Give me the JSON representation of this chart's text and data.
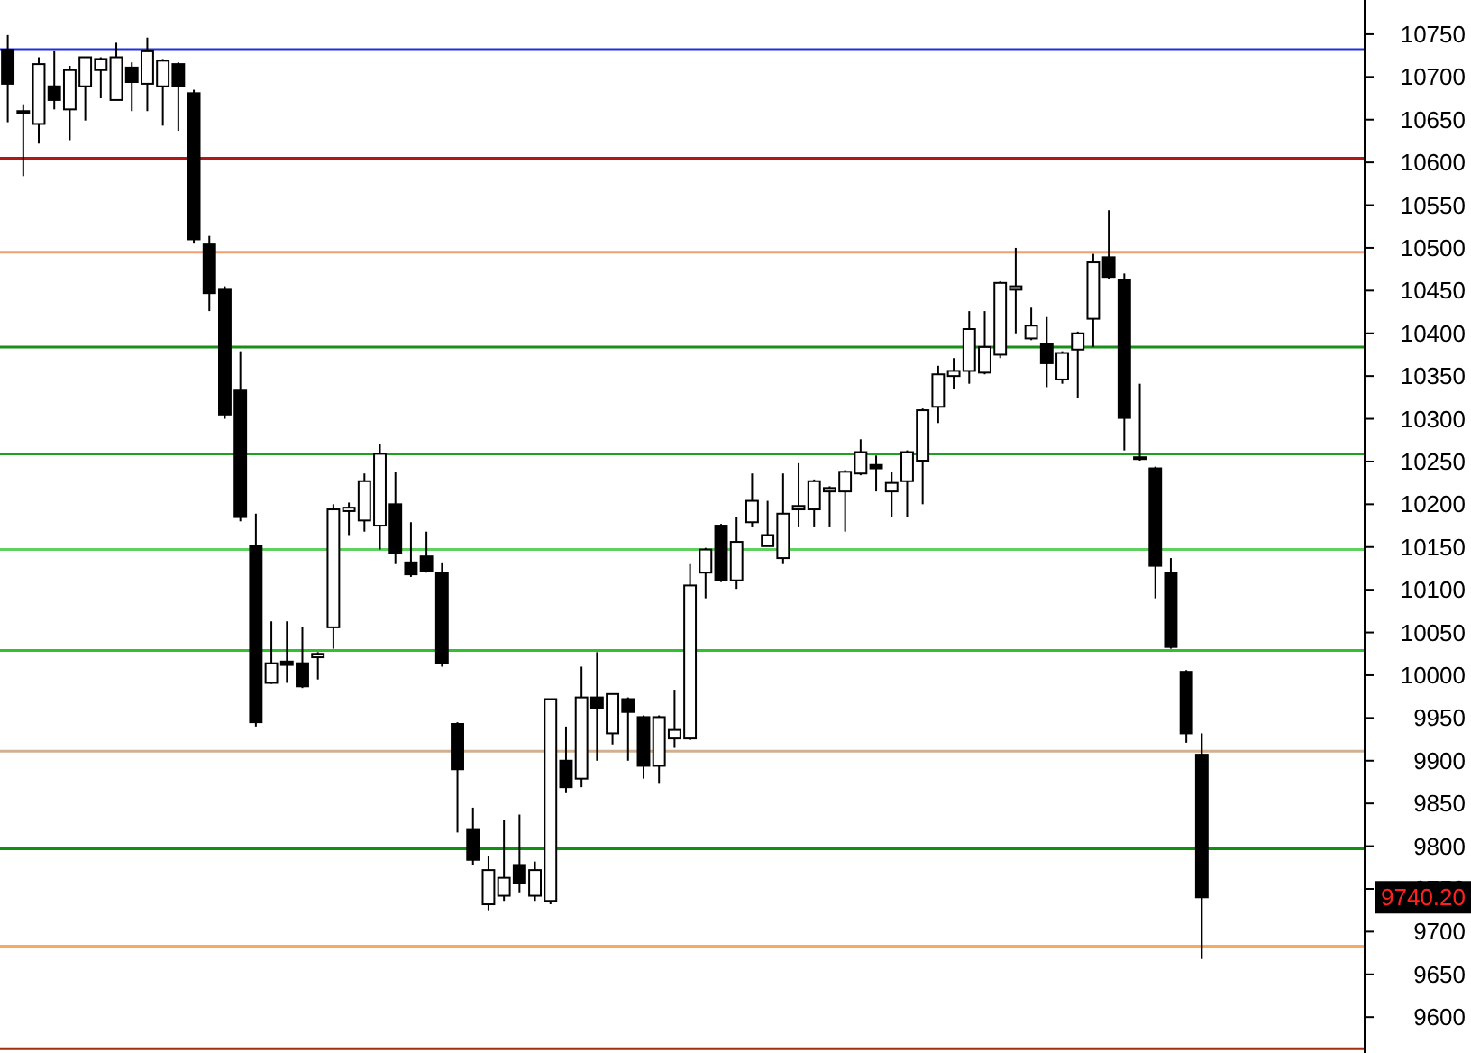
{
  "chart_data": {
    "type": "candlestick",
    "categories": [
      null,
      null,
      null,
      null,
      null,
      null,
      null,
      null,
      null,
      null,
      null,
      null,
      null,
      null,
      null,
      null,
      null,
      null,
      null,
      null,
      null,
      null,
      null,
      null,
      null,
      null,
      null,
      null,
      null,
      null,
      null,
      null,
      null,
      null,
      null,
      null,
      null,
      null,
      null,
      null,
      null,
      null,
      null,
      null,
      null,
      null,
      null,
      null,
      null,
      null,
      null,
      null,
      null,
      null,
      null,
      null,
      null,
      null,
      null,
      null,
      null,
      null,
      null,
      null,
      null,
      null,
      null,
      null,
      null,
      null,
      null,
      null,
      null,
      null,
      null,
      null,
      null,
      null,
      null,
      null,
      null,
      null,
      null,
      null,
      null,
      null,
      null,
      null
    ],
    "ohlc": [
      [
        10732,
        10749,
        10647,
        10692
      ],
      [
        10660,
        10668,
        10584,
        10658
      ],
      [
        10645,
        10723,
        10622,
        10715
      ],
      [
        10689,
        10730,
        10662,
        10673
      ],
      [
        10662,
        10713,
        10626,
        10708
      ],
      [
        10689,
        10723,
        10649,
        10723
      ],
      [
        10708,
        10723,
        10675,
        10721
      ],
      [
        10673,
        10740,
        10673,
        10723
      ],
      [
        10711,
        10717,
        10660,
        10694
      ],
      [
        10692,
        10746,
        10660,
        10730
      ],
      [
        10689,
        10721,
        10643,
        10719
      ],
      [
        10715,
        10717,
        10637,
        10689
      ],
      [
        10681,
        10685,
        10505,
        10510
      ],
      [
        10504,
        10514,
        10426,
        10447
      ],
      [
        10451,
        10455,
        10300,
        10305
      ],
      [
        10333,
        10379,
        10180,
        10185
      ],
      [
        10151,
        10189,
        9940,
        9945
      ],
      [
        9991,
        10063,
        9990,
        10014
      ],
      [
        10016,
        10063,
        9991,
        10012
      ],
      [
        10014,
        10056,
        9985,
        9987
      ],
      [
        10021,
        10027,
        9995,
        10025
      ],
      [
        10056,
        10200,
        10031,
        10194
      ],
      [
        10192,
        10202,
        10164,
        10196
      ],
      [
        10181,
        10236,
        10168,
        10227
      ],
      [
        10175,
        10270,
        10147,
        10259
      ],
      [
        10200,
        10238,
        10130,
        10143
      ],
      [
        10132,
        10179,
        10115,
        10118
      ],
      [
        10139,
        10168,
        10120,
        10122
      ],
      [
        10120,
        10132,
        10010,
        10014
      ],
      [
        9943,
        9945,
        9816,
        9890
      ],
      [
        9820,
        9845,
        9778,
        9784
      ],
      [
        9732,
        9788,
        9725,
        9772
      ],
      [
        9742,
        9831,
        9736,
        9763
      ],
      [
        9778,
        9837,
        9746,
        9757
      ],
      [
        9742,
        9782,
        9736,
        9772
      ],
      [
        9736,
        9972,
        9732,
        9972
      ],
      [
        9900,
        9940,
        9862,
        9869
      ],
      [
        9879,
        10010,
        9869,
        9974
      ],
      [
        9974,
        10027,
        9900,
        9962
      ],
      [
        9932,
        9978,
        9919,
        9978
      ],
      [
        9972,
        9974,
        9900,
        9957
      ],
      [
        9951,
        9953,
        9879,
        9894
      ],
      [
        9894,
        9953,
        9873,
        9951
      ],
      [
        9926,
        9983,
        9915,
        9936
      ],
      [
        9926,
        10130,
        9924,
        10105
      ],
      [
        10120,
        10149,
        10090,
        10147
      ],
      [
        10175,
        10177,
        10109,
        10111
      ],
      [
        10111,
        10185,
        10101,
        10156
      ],
      [
        10179,
        10236,
        10173,
        10204
      ],
      [
        10151,
        10204,
        10151,
        10164
      ],
      [
        10137,
        10236,
        10130,
        10189
      ],
      [
        10194,
        10248,
        10173,
        10198
      ],
      [
        10194,
        10229,
        10173,
        10227
      ],
      [
        10215,
        10221,
        10173,
        10219
      ],
      [
        10215,
        10240,
        10168,
        10238
      ],
      [
        10236,
        10276,
        10234,
        10261
      ],
      [
        10246,
        10257,
        10215,
        10242
      ],
      [
        10215,
        10238,
        10185,
        10225
      ],
      [
        10227,
        10263,
        10185,
        10261
      ],
      [
        10251,
        10312,
        10200,
        10310
      ],
      [
        10314,
        10362,
        10295,
        10352
      ],
      [
        10350,
        10371,
        10335,
        10356
      ],
      [
        10356,
        10426,
        10341,
        10405
      ],
      [
        10354,
        10426,
        10352,
        10384
      ],
      [
        10375,
        10461,
        10371,
        10459
      ],
      [
        10451,
        10500,
        10400,
        10455
      ],
      [
        10394,
        10430,
        10392,
        10409
      ],
      [
        10388,
        10419,
        10337,
        10365
      ],
      [
        10346,
        10379,
        10341,
        10377
      ],
      [
        10381,
        10402,
        10324,
        10400
      ],
      [
        10417,
        10493,
        10384,
        10483
      ],
      [
        10489,
        10544,
        10464,
        10466
      ],
      [
        10462,
        10470,
        10263,
        10301
      ],
      [
        10255,
        10341,
        10251,
        10253
      ],
      [
        10242,
        10244,
        10090,
        10128
      ],
      [
        10120,
        10137,
        10031,
        10033
      ],
      [
        10004,
        10006,
        9921,
        9932
      ],
      [
        9907,
        9932,
        9668,
        9740.2
      ],
      null,
      null,
      null,
      null,
      null,
      null,
      null,
      null,
      null,
      null
    ],
    "ylim": [
      9558,
      10790
    ],
    "yticks": [
      9600,
      9650,
      9700,
      9750,
      9800,
      9850,
      9900,
      9950,
      10000,
      10050,
      10100,
      10150,
      10200,
      10250,
      10300,
      10350,
      10400,
      10450,
      10500,
      10550,
      10600,
      10650,
      10700,
      10750
    ],
    "tick_labels": "y",
    "ref_lines": [
      {
        "axis": "y",
        "value": 10732,
        "color": "#2030e0"
      },
      {
        "axis": "y",
        "value": 10605,
        "color": "#b01818"
      },
      {
        "axis": "y",
        "value": 10495,
        "color": "#f0a070"
      },
      {
        "axis": "y",
        "value": 10384,
        "color": "#189018"
      },
      {
        "axis": "y",
        "value": 10259,
        "color": "#20a020"
      },
      {
        "axis": "y",
        "value": 10147,
        "color": "#60d060"
      },
      {
        "axis": "y",
        "value": 10029,
        "color": "#30c030"
      },
      {
        "axis": "y",
        "value": 9911,
        "color": "#d0b090"
      },
      {
        "axis": "y",
        "value": 9797,
        "color": "#109010"
      },
      {
        "axis": "y",
        "value": 9683,
        "color": "#f8a860"
      },
      {
        "axis": "y",
        "value": 9563,
        "color": "#a03010"
      }
    ],
    "annotations": [
      "9740.20"
    ]
  }
}
